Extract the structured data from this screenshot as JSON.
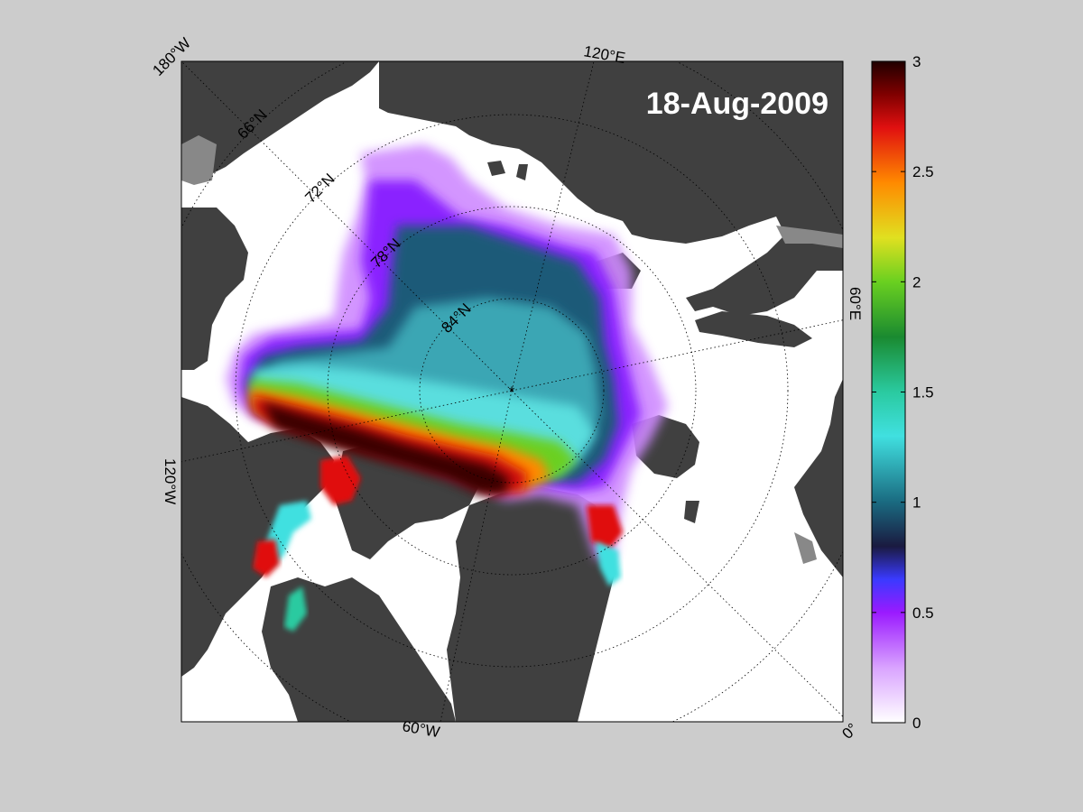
{
  "title": "18-Aug-2009",
  "map": {
    "projection": "north polar stereographic",
    "longitude_labels": {
      "w180": "180°W",
      "e120": "120°E",
      "e60": "60°E",
      "w120": "120°W",
      "w60": "60°W",
      "zero": "0°"
    },
    "latitude_labels": {
      "n66": "66°N",
      "n72": "72°N",
      "n78": "78°N",
      "n84": "84°N"
    },
    "pole_marker": "*",
    "colors": {
      "background": "#cccccc",
      "land": "#404040",
      "ocean": "#ffffff",
      "ice_shelf": "#888888"
    }
  },
  "colorbar": {
    "min": 0,
    "max": 3,
    "tick_labels": [
      "0",
      "0.5",
      "1",
      "1.5",
      "2",
      "2.5",
      "3"
    ],
    "colormap_stops": [
      {
        "value": 0.0,
        "color": "#ffffff"
      },
      {
        "value": 0.25,
        "color": "#d9a3ff"
      },
      {
        "value": 0.5,
        "color": "#9a1aff"
      },
      {
        "value": 0.65,
        "color": "#3a3aff"
      },
      {
        "value": 0.8,
        "color": "#1a1a40"
      },
      {
        "value": 1.0,
        "color": "#1a6a80"
      },
      {
        "value": 1.3,
        "color": "#40e0e0"
      },
      {
        "value": 1.5,
        "color": "#2acaa0"
      },
      {
        "value": 1.75,
        "color": "#1a8a30"
      },
      {
        "value": 2.0,
        "color": "#6ad020"
      },
      {
        "value": 2.2,
        "color": "#e0e020"
      },
      {
        "value": 2.45,
        "color": "#ff8a00"
      },
      {
        "value": 2.7,
        "color": "#e01010"
      },
      {
        "value": 2.85,
        "color": "#800000"
      },
      {
        "value": 3.0,
        "color": "#200000"
      }
    ]
  }
}
